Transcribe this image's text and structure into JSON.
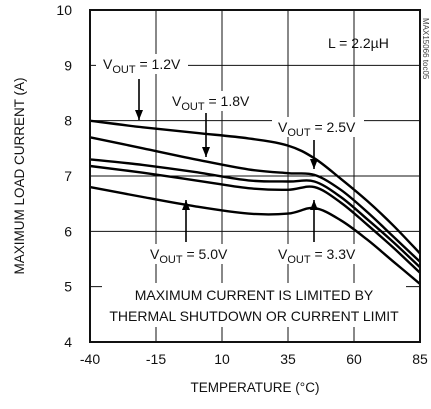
{
  "chart_data": {
    "type": "line",
    "xlabel": "TEMPERATURE (°C)",
    "ylabel": "MAXIMUM LOAD CURRENT (A)",
    "xlim": [
      -40,
      85
    ],
    "ylim": [
      4,
      10
    ],
    "x_ticks": [
      "-40",
      "-15",
      "10",
      "35",
      "60",
      "85"
    ],
    "y_ticks": [
      "4",
      "5",
      "6",
      "7",
      "8",
      "9",
      "10"
    ],
    "grid": true,
    "inductor_label": "L = 2.2µH",
    "watermark": "MAX15066 toc05",
    "note_lines": [
      "MAXIMUM CURRENT IS LIMITED BY",
      "THERMAL SHUTDOWN OR CURRENT LIMIT"
    ],
    "series": [
      {
        "name": "VOUT = 1.2V",
        "label_main": "V",
        "label_sub": "OUT",
        "label_rest": " = 1.2V",
        "x": [
          -40,
          -20,
          0,
          20,
          35,
          45,
          55,
          65,
          75,
          85
        ],
        "y": [
          8.0,
          7.88,
          7.78,
          7.68,
          7.55,
          7.32,
          6.95,
          6.55,
          6.1,
          5.6
        ]
      },
      {
        "name": "VOUT = 1.8V",
        "label_main": "V",
        "label_sub": "OUT",
        "label_rest": " = 1.8V",
        "x": [
          -40,
          -20,
          0,
          20,
          35,
          45,
          55,
          65,
          75,
          85
        ],
        "y": [
          7.7,
          7.5,
          7.3,
          7.12,
          7.05,
          7.02,
          6.75,
          6.35,
          5.9,
          5.45
        ]
      },
      {
        "name": "VOUT = 2.5V",
        "label_main": "V",
        "label_sub": "OUT",
        "label_rest": " = 2.5V",
        "x": [
          -40,
          -20,
          0,
          20,
          35,
          45,
          55,
          65,
          75,
          85
        ],
        "y": [
          7.3,
          7.2,
          7.07,
          6.92,
          6.9,
          6.9,
          6.62,
          6.22,
          5.8,
          5.35
        ]
      },
      {
        "name": "VOUT = 3.3V",
        "label_main": "V",
        "label_sub": "OUT",
        "label_rest": " = 3.3V",
        "x": [
          -40,
          -20,
          0,
          20,
          35,
          45,
          55,
          65,
          75,
          85
        ],
        "y": [
          7.18,
          7.06,
          6.92,
          6.78,
          6.75,
          6.8,
          6.52,
          6.12,
          5.7,
          5.25
        ]
      },
      {
        "name": "VOUT = 5.0V",
        "label_main": "V",
        "label_sub": "OUT",
        "label_rest": " = 5.0V",
        "x": [
          -40,
          -20,
          0,
          20,
          35,
          45,
          55,
          65,
          75,
          85
        ],
        "y": [
          6.8,
          6.62,
          6.45,
          6.32,
          6.32,
          6.42,
          6.2,
          5.85,
          5.45,
          5.05
        ]
      }
    ]
  }
}
